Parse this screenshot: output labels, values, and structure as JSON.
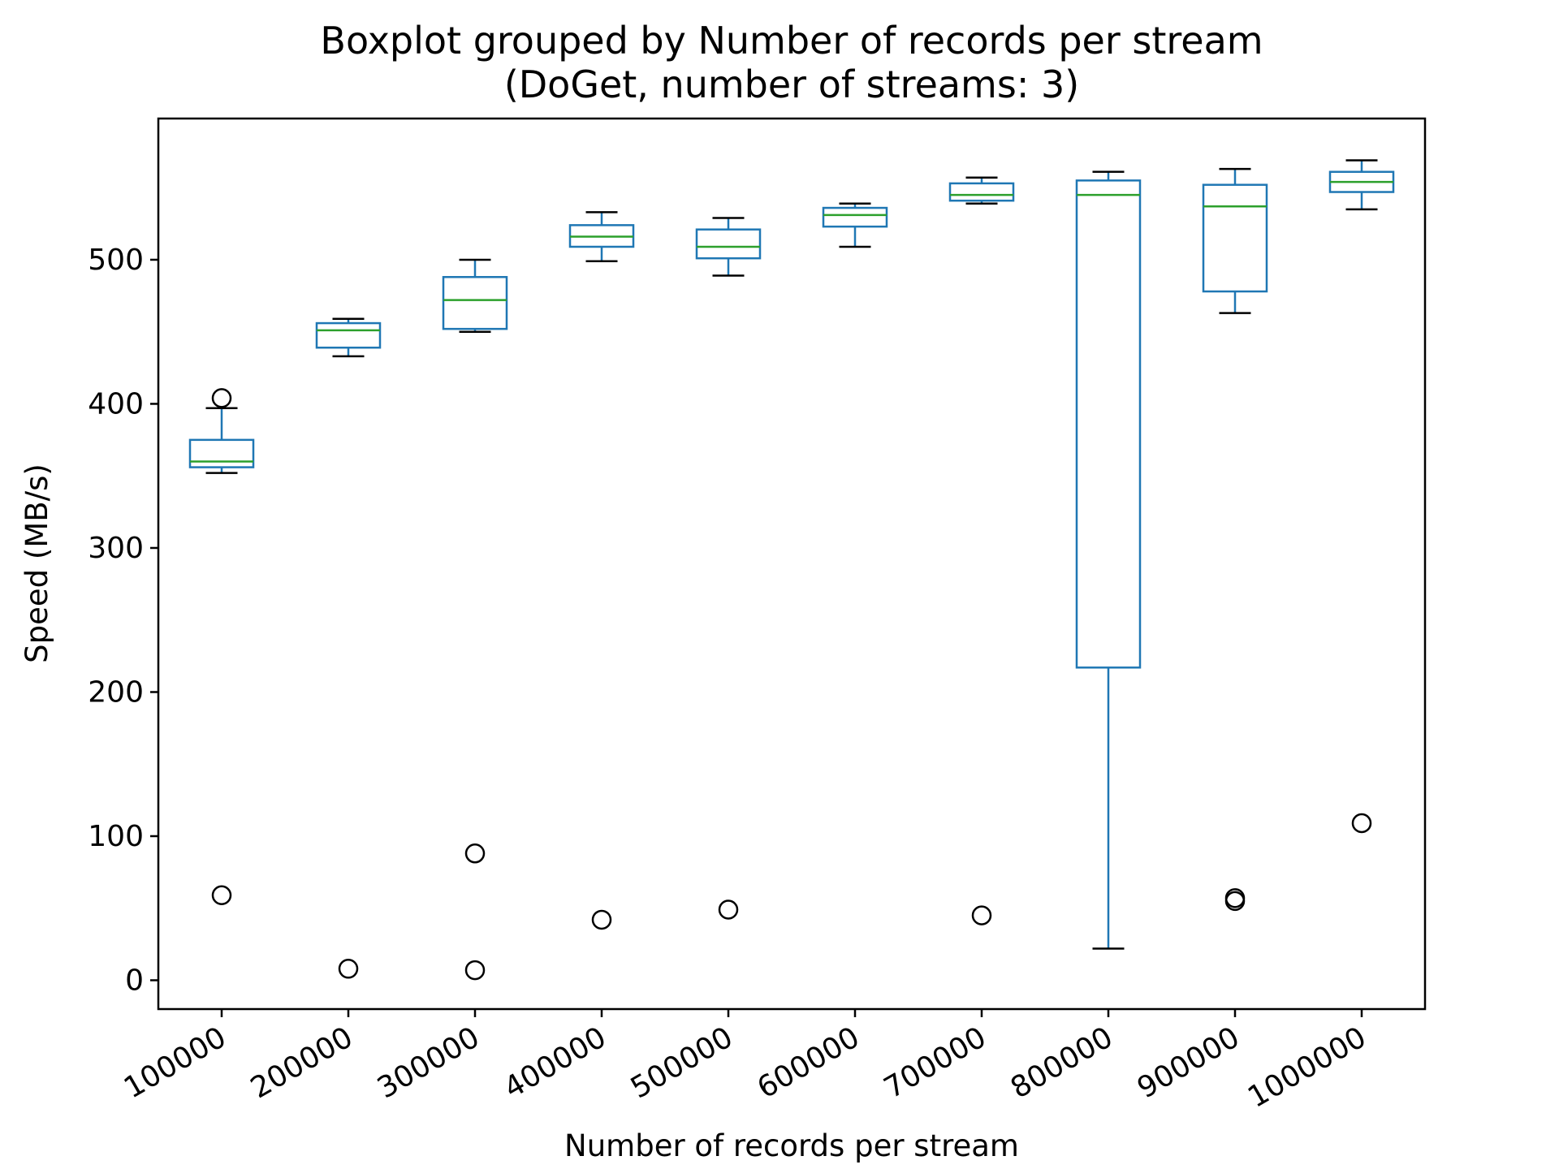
{
  "chart_data": {
    "type": "box",
    "title": "Boxplot grouped by Number of records per stream",
    "subtitle": "(DoGet, number of streams: 3)",
    "xlabel": "Number of records per stream",
    "ylabel": "Speed (MB/s)",
    "ylim": [
      -20,
      598
    ],
    "yticks": [
      0,
      100,
      200,
      300,
      400,
      500
    ],
    "grid": false,
    "colors": {
      "box": "#1f77b4",
      "median": "#2ca02c",
      "whisker_cap": "#000000",
      "outlier": "#000000"
    },
    "categories": [
      "100000",
      "200000",
      "300000",
      "400000",
      "500000",
      "600000",
      "700000",
      "800000",
      "900000",
      "1000000"
    ],
    "boxes": [
      {
        "whislo": 352,
        "q1": 356,
        "med": 360,
        "q3": 375,
        "whishi": 397,
        "fliers": [
          404,
          59
        ]
      },
      {
        "whislo": 433,
        "q1": 439,
        "med": 451,
        "q3": 456,
        "whishi": 459,
        "fliers": [
          8
        ]
      },
      {
        "whislo": 450,
        "q1": 452,
        "med": 472,
        "q3": 488,
        "whishi": 500,
        "fliers": [
          88,
          7
        ]
      },
      {
        "whislo": 499,
        "q1": 509,
        "med": 516,
        "q3": 524,
        "whishi": 533,
        "fliers": [
          42
        ]
      },
      {
        "whislo": 489,
        "q1": 501,
        "med": 509,
        "q3": 521,
        "whishi": 529,
        "fliers": [
          49
        ]
      },
      {
        "whislo": 509,
        "q1": 523,
        "med": 531,
        "q3": 536,
        "whishi": 539,
        "fliers": []
      },
      {
        "whislo": 539,
        "q1": 541,
        "med": 545,
        "q3": 553,
        "whishi": 557,
        "fliers": [
          45
        ]
      },
      {
        "whislo": 22,
        "q1": 217,
        "med": 545,
        "q3": 555,
        "whishi": 561,
        "fliers": []
      },
      {
        "whislo": 463,
        "q1": 478,
        "med": 537,
        "q3": 552,
        "whishi": 563,
        "fliers": [
          57,
          55
        ]
      },
      {
        "whislo": 535,
        "q1": 547,
        "med": 554,
        "q3": 561,
        "whishi": 569,
        "fliers": [
          109
        ]
      }
    ]
  }
}
